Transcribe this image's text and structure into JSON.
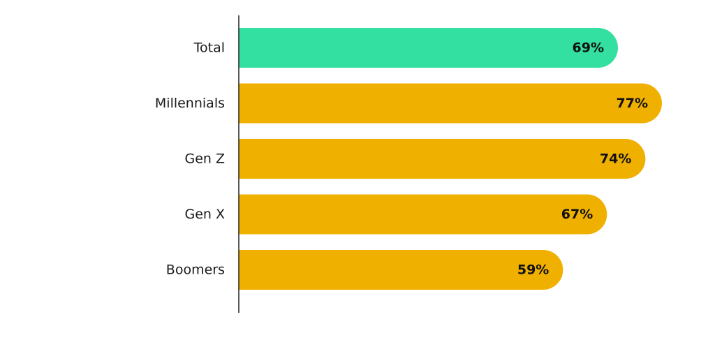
{
  "chart_data": {
    "type": "bar",
    "orientation": "horizontal",
    "categories": [
      "Total",
      "Millennials",
      "Gen Z",
      "Gen X",
      "Boomers"
    ],
    "values": [
      69,
      77,
      74,
      67,
      59
    ],
    "value_labels": [
      "69%",
      "77%",
      "74%",
      "67%",
      "59%"
    ],
    "unit": "%",
    "title": "",
    "xlabel": "",
    "ylabel": "",
    "grid": false,
    "legend": "none",
    "colors": {
      "highlight": "#34E0A1",
      "default": "#F0B000",
      "axis": "#222222"
    },
    "highlighted_category": "Total"
  }
}
